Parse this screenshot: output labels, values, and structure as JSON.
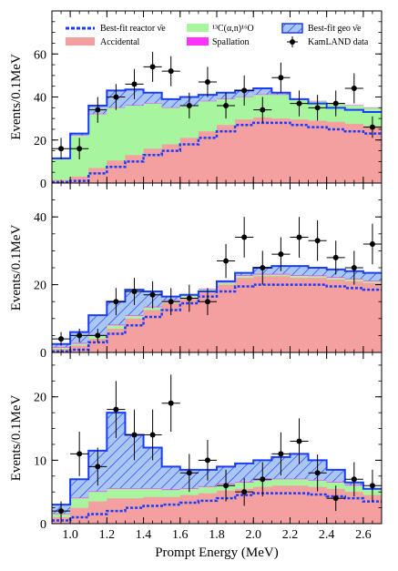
{
  "chart_data": {
    "type": "area",
    "xlabel": "Prompt Energy (MeV)",
    "ylabel": "Events/0.1MeV",
    "x_ticks": [
      "1.0",
      "1.2",
      "1.4",
      "1.6",
      "1.8",
      "2.0",
      "2.2",
      "2.4",
      "2.6"
    ],
    "xlim": [
      0.9,
      2.7
    ],
    "bin_edges": [
      0.9,
      1.0,
      1.1,
      1.2,
      1.3,
      1.4,
      1.5,
      1.6,
      1.7,
      1.8,
      1.9,
      2.0,
      2.1,
      2.2,
      2.3,
      2.4,
      2.5,
      2.6,
      2.7
    ],
    "legend": {
      "reactor": "Best-fit reactor ν̄e",
      "accidental": "Accidental",
      "alpha_n": "¹³C(α,n)¹⁶O",
      "spallation": "Spallation",
      "geo": "Best-fit geo ν̄e",
      "data": "KamLAND data"
    },
    "colors": {
      "reactor": "#1a3cff",
      "accidental": "#f4a0a0",
      "alpha_n": "#a8f5a0",
      "spallation": "#ff33ff",
      "geo_fill": "#a9c7f2",
      "geo_edge": "#1a3cff",
      "data": "#000000"
    },
    "panels": [
      {
        "ylim": [
          0,
          80
        ],
        "y_ticks": [
          "0",
          "20",
          "40",
          "60"
        ],
        "reactor": [
          0.5,
          1,
          4.5,
          7.5,
          10,
          13,
          15,
          18,
          21,
          24,
          27,
          28,
          28,
          27,
          26,
          25,
          24,
          23
        ],
        "accidental": [
          1.5,
          3,
          7,
          10.5,
          13,
          16,
          18,
          21,
          24,
          27,
          29.5,
          30.5,
          30,
          29.5,
          29,
          28.5,
          27.5,
          26.5
        ],
        "alpha_n": [
          11,
          22,
          32,
          35,
          36,
          37,
          35,
          36,
          38,
          39,
          40,
          41,
          41,
          39,
          38,
          37,
          36,
          35
        ],
        "spallation": [
          11.2,
          22.2,
          32.2,
          35.2,
          36.2,
          37.2,
          35.2,
          36.2,
          38.2,
          39.2,
          40.2,
          41.2,
          41.2,
          39.2,
          38.2,
          37.2,
          36.2,
          35.2
        ],
        "geo_total": [
          11.5,
          23,
          36,
          43,
          43.5,
          42,
          39,
          40,
          41,
          42,
          43,
          44,
          42,
          39,
          37,
          35,
          34,
          33
        ],
        "data": [
          {
            "x": 0.95,
            "y": 16,
            "err": 5
          },
          {
            "x": 1.05,
            "y": 16,
            "err": 5
          },
          {
            "x": 1.15,
            "y": 34,
            "err": 6
          },
          {
            "x": 1.25,
            "y": 40,
            "err": 6
          },
          {
            "x": 1.35,
            "y": 46,
            "err": 7
          },
          {
            "x": 1.45,
            "y": 54,
            "err": 7
          },
          {
            "x": 1.55,
            "y": 52,
            "err": 7
          },
          {
            "x": 1.65,
            "y": 36,
            "err": 6
          },
          {
            "x": 1.75,
            "y": 47,
            "err": 7
          },
          {
            "x": 1.85,
            "y": 36,
            "err": 6
          },
          {
            "x": 1.95,
            "y": 43,
            "err": 7
          },
          {
            "x": 2.05,
            "y": 34,
            "err": 6
          },
          {
            "x": 2.15,
            "y": 49,
            "err": 7
          },
          {
            "x": 2.25,
            "y": 37,
            "err": 6
          },
          {
            "x": 2.35,
            "y": 35,
            "err": 6
          },
          {
            "x": 2.45,
            "y": 37,
            "err": 6
          },
          {
            "x": 2.55,
            "y": 44,
            "err": 7
          },
          {
            "x": 2.65,
            "y": 26,
            "err": 5
          }
        ]
      },
      {
        "ylim": [
          0,
          50
        ],
        "y_ticks": [
          "0",
          "20",
          "40"
        ],
        "reactor": [
          0.3,
          0.8,
          3,
          5.5,
          8,
          10.5,
          12.5,
          14.5,
          16.5,
          18,
          19.5,
          20,
          20,
          20,
          20,
          19.5,
          19,
          18.5
        ],
        "accidental": [
          1,
          2,
          4,
          7,
          10,
          12.5,
          14.5,
          16,
          18,
          20,
          22,
          22.5,
          22.5,
          22,
          22,
          21.5,
          21,
          20.5
        ],
        "alpha_n": [
          1.4,
          2.6,
          5,
          8,
          10.8,
          13.3,
          15.2,
          16.8,
          18.6,
          20.6,
          22.6,
          23,
          23,
          22.6,
          22.5,
          22,
          21.6,
          21
        ],
        "spallation": [
          1.6,
          2.8,
          5.2,
          8.2,
          11,
          13.5,
          15.4,
          17,
          18.8,
          20.8,
          22.8,
          23.2,
          23.2,
          22.8,
          22.7,
          22.2,
          21.8,
          21.2
        ],
        "geo_total": [
          2.5,
          6,
          11,
          15,
          18.5,
          18,
          16.5,
          17,
          18,
          21,
          23.5,
          25,
          25.5,
          25.5,
          25,
          24.5,
          24,
          23.5
        ],
        "data": [
          {
            "x": 0.95,
            "y": 4,
            "err": 2
          },
          {
            "x": 1.05,
            "y": 5,
            "err": 2
          },
          {
            "x": 1.15,
            "y": 5,
            "err": 2
          },
          {
            "x": 1.25,
            "y": 15,
            "err": 4
          },
          {
            "x": 1.35,
            "y": 18,
            "err": 4
          },
          {
            "x": 1.45,
            "y": 17,
            "err": 4
          },
          {
            "x": 1.55,
            "y": 15,
            "err": 4
          },
          {
            "x": 1.65,
            "y": 16,
            "err": 4
          },
          {
            "x": 1.75,
            "y": 15,
            "err": 4
          },
          {
            "x": 1.85,
            "y": 27,
            "err": 5
          },
          {
            "x": 1.95,
            "y": 34,
            "err": 6
          },
          {
            "x": 2.05,
            "y": 25,
            "err": 5
          },
          {
            "x": 2.15,
            "y": 29,
            "err": 5
          },
          {
            "x": 2.25,
            "y": 34,
            "err": 6
          },
          {
            "x": 2.35,
            "y": 33,
            "err": 6
          },
          {
            "x": 2.45,
            "y": 28,
            "err": 5
          },
          {
            "x": 2.55,
            "y": 25,
            "err": 5
          },
          {
            "x": 2.65,
            "y": 32,
            "err": 6
          }
        ]
      },
      {
        "ylim": [
          0,
          27
        ],
        "y_ticks": [
          "0",
          "10",
          "20"
        ],
        "reactor": [
          0.5,
          1,
          1.5,
          2,
          2.5,
          2.8,
          3,
          3.3,
          3.6,
          4,
          4.5,
          4.8,
          4.8,
          4.8,
          4.6,
          4.3,
          4,
          3.5
        ],
        "accidental": [
          1,
          2.5,
          3.5,
          4,
          4,
          4.2,
          4.2,
          4.5,
          4.8,
          5.2,
          5.5,
          5.8,
          6,
          6,
          5.8,
          5.5,
          5,
          4.5
        ],
        "alpha_n": [
          1.5,
          4,
          5,
          5.5,
          5.5,
          5.5,
          5.3,
          5.5,
          5.8,
          6.2,
          6.5,
          6.8,
          7,
          7,
          6.8,
          6.5,
          6,
          5.5
        ],
        "spallation": [
          1.6,
          4.1,
          5.1,
          5.6,
          5.6,
          5.6,
          5.4,
          5.6,
          5.9,
          6.3,
          6.6,
          6.9,
          7.1,
          7.1,
          6.9,
          6.6,
          6.1,
          5.6
        ],
        "geo_total": [
          3,
          7,
          11.5,
          17.5,
          14,
          12,
          9,
          8.5,
          8.5,
          9,
          9.5,
          10,
          10.5,
          11,
          10,
          8.5,
          6.5,
          5.5
        ],
        "data": [
          {
            "x": 0.95,
            "y": 2,
            "err": 1.5
          },
          {
            "x": 1.05,
            "y": 11,
            "err": 3.5
          },
          {
            "x": 1.15,
            "y": 9,
            "err": 3
          },
          {
            "x": 1.25,
            "y": 18,
            "err": 4.5
          },
          {
            "x": 1.35,
            "y": 14,
            "err": 4
          },
          {
            "x": 1.45,
            "y": 14,
            "err": 4
          },
          {
            "x": 1.55,
            "y": 19,
            "err": 4.5
          },
          {
            "x": 1.65,
            "y": 8,
            "err": 3
          },
          {
            "x": 1.75,
            "y": 10,
            "err": 3.2
          },
          {
            "x": 1.85,
            "y": 6,
            "err": 2.5
          },
          {
            "x": 1.95,
            "y": 5,
            "err": 2.2
          },
          {
            "x": 2.05,
            "y": 7,
            "err": 2.7
          },
          {
            "x": 2.15,
            "y": 11,
            "err": 3.4
          },
          {
            "x": 2.25,
            "y": 13,
            "err": 3.6
          },
          {
            "x": 2.35,
            "y": 8,
            "err": 2.9
          },
          {
            "x": 2.45,
            "y": 4,
            "err": 2
          },
          {
            "x": 2.55,
            "y": 7,
            "err": 2.7
          },
          {
            "x": 2.65,
            "y": 6,
            "err": 2.5
          }
        ]
      }
    ]
  }
}
